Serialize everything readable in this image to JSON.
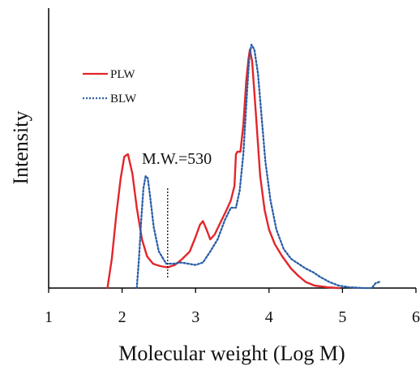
{
  "chart_data": {
    "type": "line",
    "title": "",
    "xlabel": "Molecular weight (Log M)",
    "ylabel": "Intensity",
    "xlim": [
      1,
      6
    ],
    "ylim": [
      0,
      1.0
    ],
    "xticks": [
      "1",
      "2",
      "3",
      "4",
      "5",
      "6"
    ],
    "yticks_shown": false,
    "grid": false,
    "legend_position": "top-left",
    "annotation": {
      "text": "M.W.=530",
      "x": 2.62
    },
    "series": [
      {
        "name": "PLW",
        "color": "#e3262b",
        "style": "solid",
        "points": [
          [
            1.8,
            0.0
          ],
          [
            1.86,
            0.12
          ],
          [
            1.92,
            0.3
          ],
          [
            1.98,
            0.45
          ],
          [
            2.03,
            0.54
          ],
          [
            2.08,
            0.55
          ],
          [
            2.14,
            0.47
          ],
          [
            2.2,
            0.33
          ],
          [
            2.27,
            0.2
          ],
          [
            2.34,
            0.13
          ],
          [
            2.42,
            0.1
          ],
          [
            2.52,
            0.09
          ],
          [
            2.62,
            0.085
          ],
          [
            2.72,
            0.095
          ],
          [
            2.82,
            0.12
          ],
          [
            2.92,
            0.15
          ],
          [
            3.0,
            0.21
          ],
          [
            3.06,
            0.26
          ],
          [
            3.1,
            0.275
          ],
          [
            3.15,
            0.24
          ],
          [
            3.2,
            0.2
          ],
          [
            3.26,
            0.22
          ],
          [
            3.34,
            0.27
          ],
          [
            3.42,
            0.32
          ],
          [
            3.48,
            0.36
          ],
          [
            3.53,
            0.42
          ],
          [
            3.55,
            0.55
          ],
          [
            3.57,
            0.56
          ],
          [
            3.61,
            0.56
          ],
          [
            3.65,
            0.67
          ],
          [
            3.69,
            0.85
          ],
          [
            3.72,
            0.94
          ],
          [
            3.74,
            0.98
          ],
          [
            3.77,
            0.93
          ],
          [
            3.82,
            0.72
          ],
          [
            3.88,
            0.46
          ],
          [
            3.94,
            0.32
          ],
          [
            4.0,
            0.24
          ],
          [
            4.08,
            0.18
          ],
          [
            4.18,
            0.13
          ],
          [
            4.3,
            0.08
          ],
          [
            4.4,
            0.05
          ],
          [
            4.5,
            0.025
          ],
          [
            4.62,
            0.01
          ],
          [
            4.8,
            0.003
          ],
          [
            4.95,
            0.0
          ]
        ]
      },
      {
        "name": "BLW",
        "color": "#2a5ea8",
        "style": "dotted",
        "points": [
          [
            2.2,
            0.0
          ],
          [
            2.23,
            0.12
          ],
          [
            2.26,
            0.28
          ],
          [
            2.29,
            0.41
          ],
          [
            2.32,
            0.46
          ],
          [
            2.35,
            0.45
          ],
          [
            2.38,
            0.38
          ],
          [
            2.43,
            0.25
          ],
          [
            2.5,
            0.15
          ],
          [
            2.6,
            0.1
          ],
          [
            2.7,
            0.1
          ],
          [
            2.8,
            0.105
          ],
          [
            2.9,
            0.1
          ],
          [
            3.0,
            0.095
          ],
          [
            3.1,
            0.105
          ],
          [
            3.2,
            0.15
          ],
          [
            3.3,
            0.2
          ],
          [
            3.4,
            0.28
          ],
          [
            3.48,
            0.33
          ],
          [
            3.55,
            0.33
          ],
          [
            3.6,
            0.4
          ],
          [
            3.65,
            0.55
          ],
          [
            3.7,
            0.8
          ],
          [
            3.73,
            0.94
          ],
          [
            3.76,
            1.0
          ],
          [
            3.8,
            0.98
          ],
          [
            3.85,
            0.88
          ],
          [
            3.9,
            0.7
          ],
          [
            3.95,
            0.52
          ],
          [
            4.02,
            0.36
          ],
          [
            4.1,
            0.24
          ],
          [
            4.2,
            0.16
          ],
          [
            4.3,
            0.12
          ],
          [
            4.4,
            0.1
          ],
          [
            4.5,
            0.08
          ],
          [
            4.6,
            0.065
          ],
          [
            4.7,
            0.045
          ],
          [
            4.82,
            0.025
          ],
          [
            4.95,
            0.01
          ],
          [
            5.1,
            0.003
          ],
          [
            5.3,
            0.0
          ],
          [
            5.4,
            0.0
          ],
          [
            5.45,
            0.02
          ],
          [
            5.5,
            0.025
          ]
        ]
      }
    ]
  }
}
